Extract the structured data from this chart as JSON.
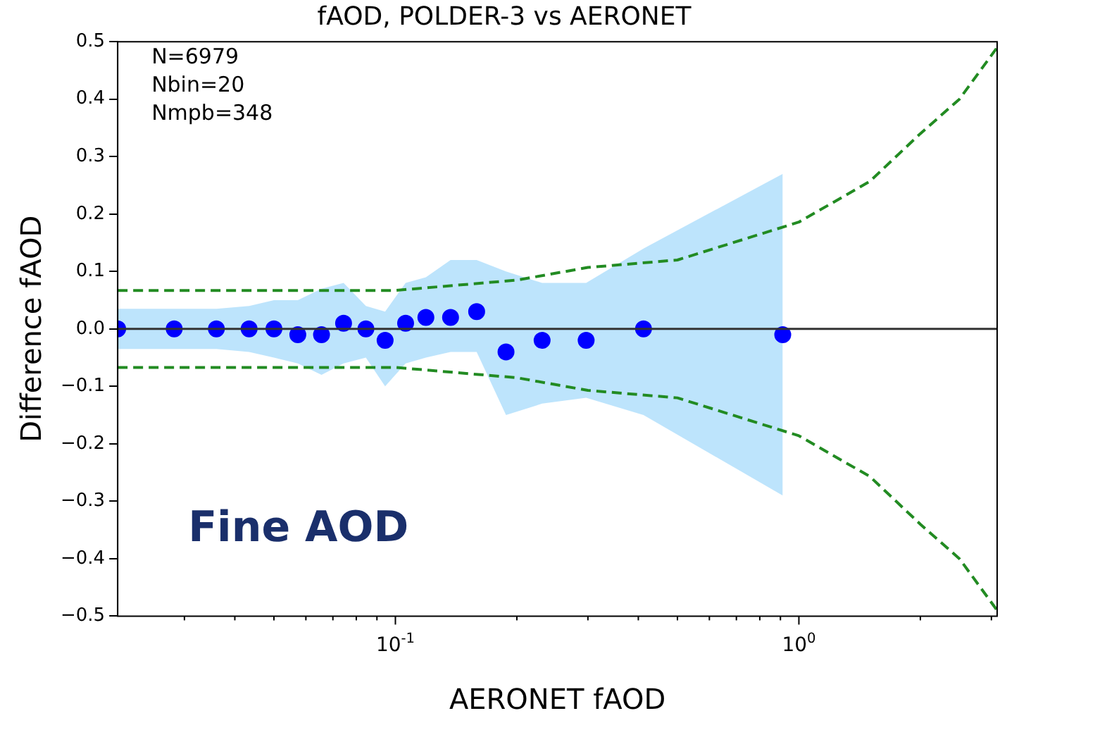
{
  "chart_data": {
    "type": "scatter",
    "title": "fAOD, POLDER-3 vs AERONET",
    "xlabel": "AERONET fAOD",
    "ylabel": "Difference fAOD",
    "log": "x",
    "grid": false,
    "legend": false,
    "marker": "circle",
    "xlim": [
      0.0205,
      3.1
    ],
    "xticks": [
      {
        "value": 0.03,
        "label": null
      },
      {
        "value": 0.04,
        "label": null
      },
      {
        "value": 0.05,
        "label": null
      },
      {
        "value": 0.06,
        "label": null
      },
      {
        "value": 0.07,
        "label": null
      },
      {
        "value": 0.08,
        "label": null
      },
      {
        "value": 0.09,
        "label": null
      },
      {
        "value": 0.1,
        "label": "10$^{-1}$"
      },
      {
        "value": 0.2,
        "label": null
      },
      {
        "value": 0.3,
        "label": null
      },
      {
        "value": 0.4,
        "label": null
      },
      {
        "value": 0.5,
        "label": null
      },
      {
        "value": 0.6,
        "label": null
      },
      {
        "value": 0.7,
        "label": null
      },
      {
        "value": 0.8,
        "label": null
      },
      {
        "value": 0.9,
        "label": null
      },
      {
        "value": 1,
        "label": "10$^{0}$"
      },
      {
        "value": 2,
        "label": null
      },
      {
        "value": 3,
        "label": null
      }
    ],
    "ylim": [
      -0.5,
      0.5
    ],
    "yticks": [
      {
        "value": -0.5,
        "label": "−0.5"
      },
      {
        "value": -0.4,
        "label": "−0.4"
      },
      {
        "value": -0.3,
        "label": "−0.3"
      },
      {
        "value": -0.2,
        "label": "−0.2"
      },
      {
        "value": -0.1,
        "label": "−0.1"
      },
      {
        "value": 0,
        "label": "0.0"
      },
      {
        "value": 0.1,
        "label": "0.1"
      },
      {
        "value": 0.2,
        "label": "0.2"
      },
      {
        "value": 0.3,
        "label": "0.3"
      },
      {
        "value": 0.4,
        "label": "0.4"
      },
      {
        "value": 0.5,
        "label": "0.5"
      }
    ],
    "ref_lines": [
      {
        "axis": "y",
        "value": 0,
        "color": "#333333"
      }
    ],
    "annotations": [
      "N=6979",
      "Nbin=20",
      "Nmpb=348",
      "Fine AOD"
    ],
    "series": [
      {
        "type": "scatter",
        "color": "#0000ff",
        "x": [
          0.0205,
          0.0283,
          0.036,
          0.0434,
          0.05,
          0.0573,
          0.0656,
          0.0744,
          0.0845,
          0.0943,
          0.106,
          0.119,
          0.137,
          0.159,
          0.188,
          0.231,
          0.297,
          0.412,
          0.912
        ],
        "values": [
          0,
          0,
          0,
          0,
          0,
          -0.01,
          -0.01,
          0.01,
          0,
          -0.02,
          0.01,
          0.02,
          0.02,
          0.03,
          -0.04,
          -0.02,
          -0.02,
          0,
          -0.01
        ],
        "lower": [
          -0.035,
          -0.035,
          -0.035,
          -0.04,
          -0.05,
          -0.06,
          -0.08,
          -0.06,
          -0.05,
          -0.1,
          -0.06,
          -0.05,
          -0.04,
          -0.04,
          -0.15,
          -0.13,
          -0.12,
          -0.15,
          -0.29
        ],
        "upper": [
          0.035,
          0.035,
          0.035,
          0.04,
          0.05,
          0.05,
          0.07,
          0.08,
          0.04,
          0.03,
          0.08,
          0.09,
          0.12,
          0.12,
          0.1,
          0.08,
          0.08,
          0.14,
          0.27
        ]
      },
      {
        "type": "line",
        "color": "#228b22",
        "line_style": "dashed",
        "marker": "none",
        "x": [
          0.0205,
          0.1,
          0.2,
          0.3,
          0.5,
          1,
          1.5,
          2,
          2.5,
          3.1
        ],
        "values": [
          0.067,
          0.067,
          0.085,
          0.107,
          0.12,
          0.186,
          0.257,
          0.34,
          0.4,
          0.49
        ]
      },
      {
        "type": "line",
        "color": "#228b22",
        "line_style": "dashed",
        "marker": "none",
        "x": [
          0.0205,
          0.1,
          0.2,
          0.3,
          0.5,
          1,
          1.5,
          2,
          2.5,
          3.1
        ],
        "values": [
          -0.067,
          -0.067,
          -0.085,
          -0.107,
          -0.12,
          -0.186,
          -0.257,
          -0.34,
          -0.4,
          -0.49
        ]
      }
    ]
  }
}
